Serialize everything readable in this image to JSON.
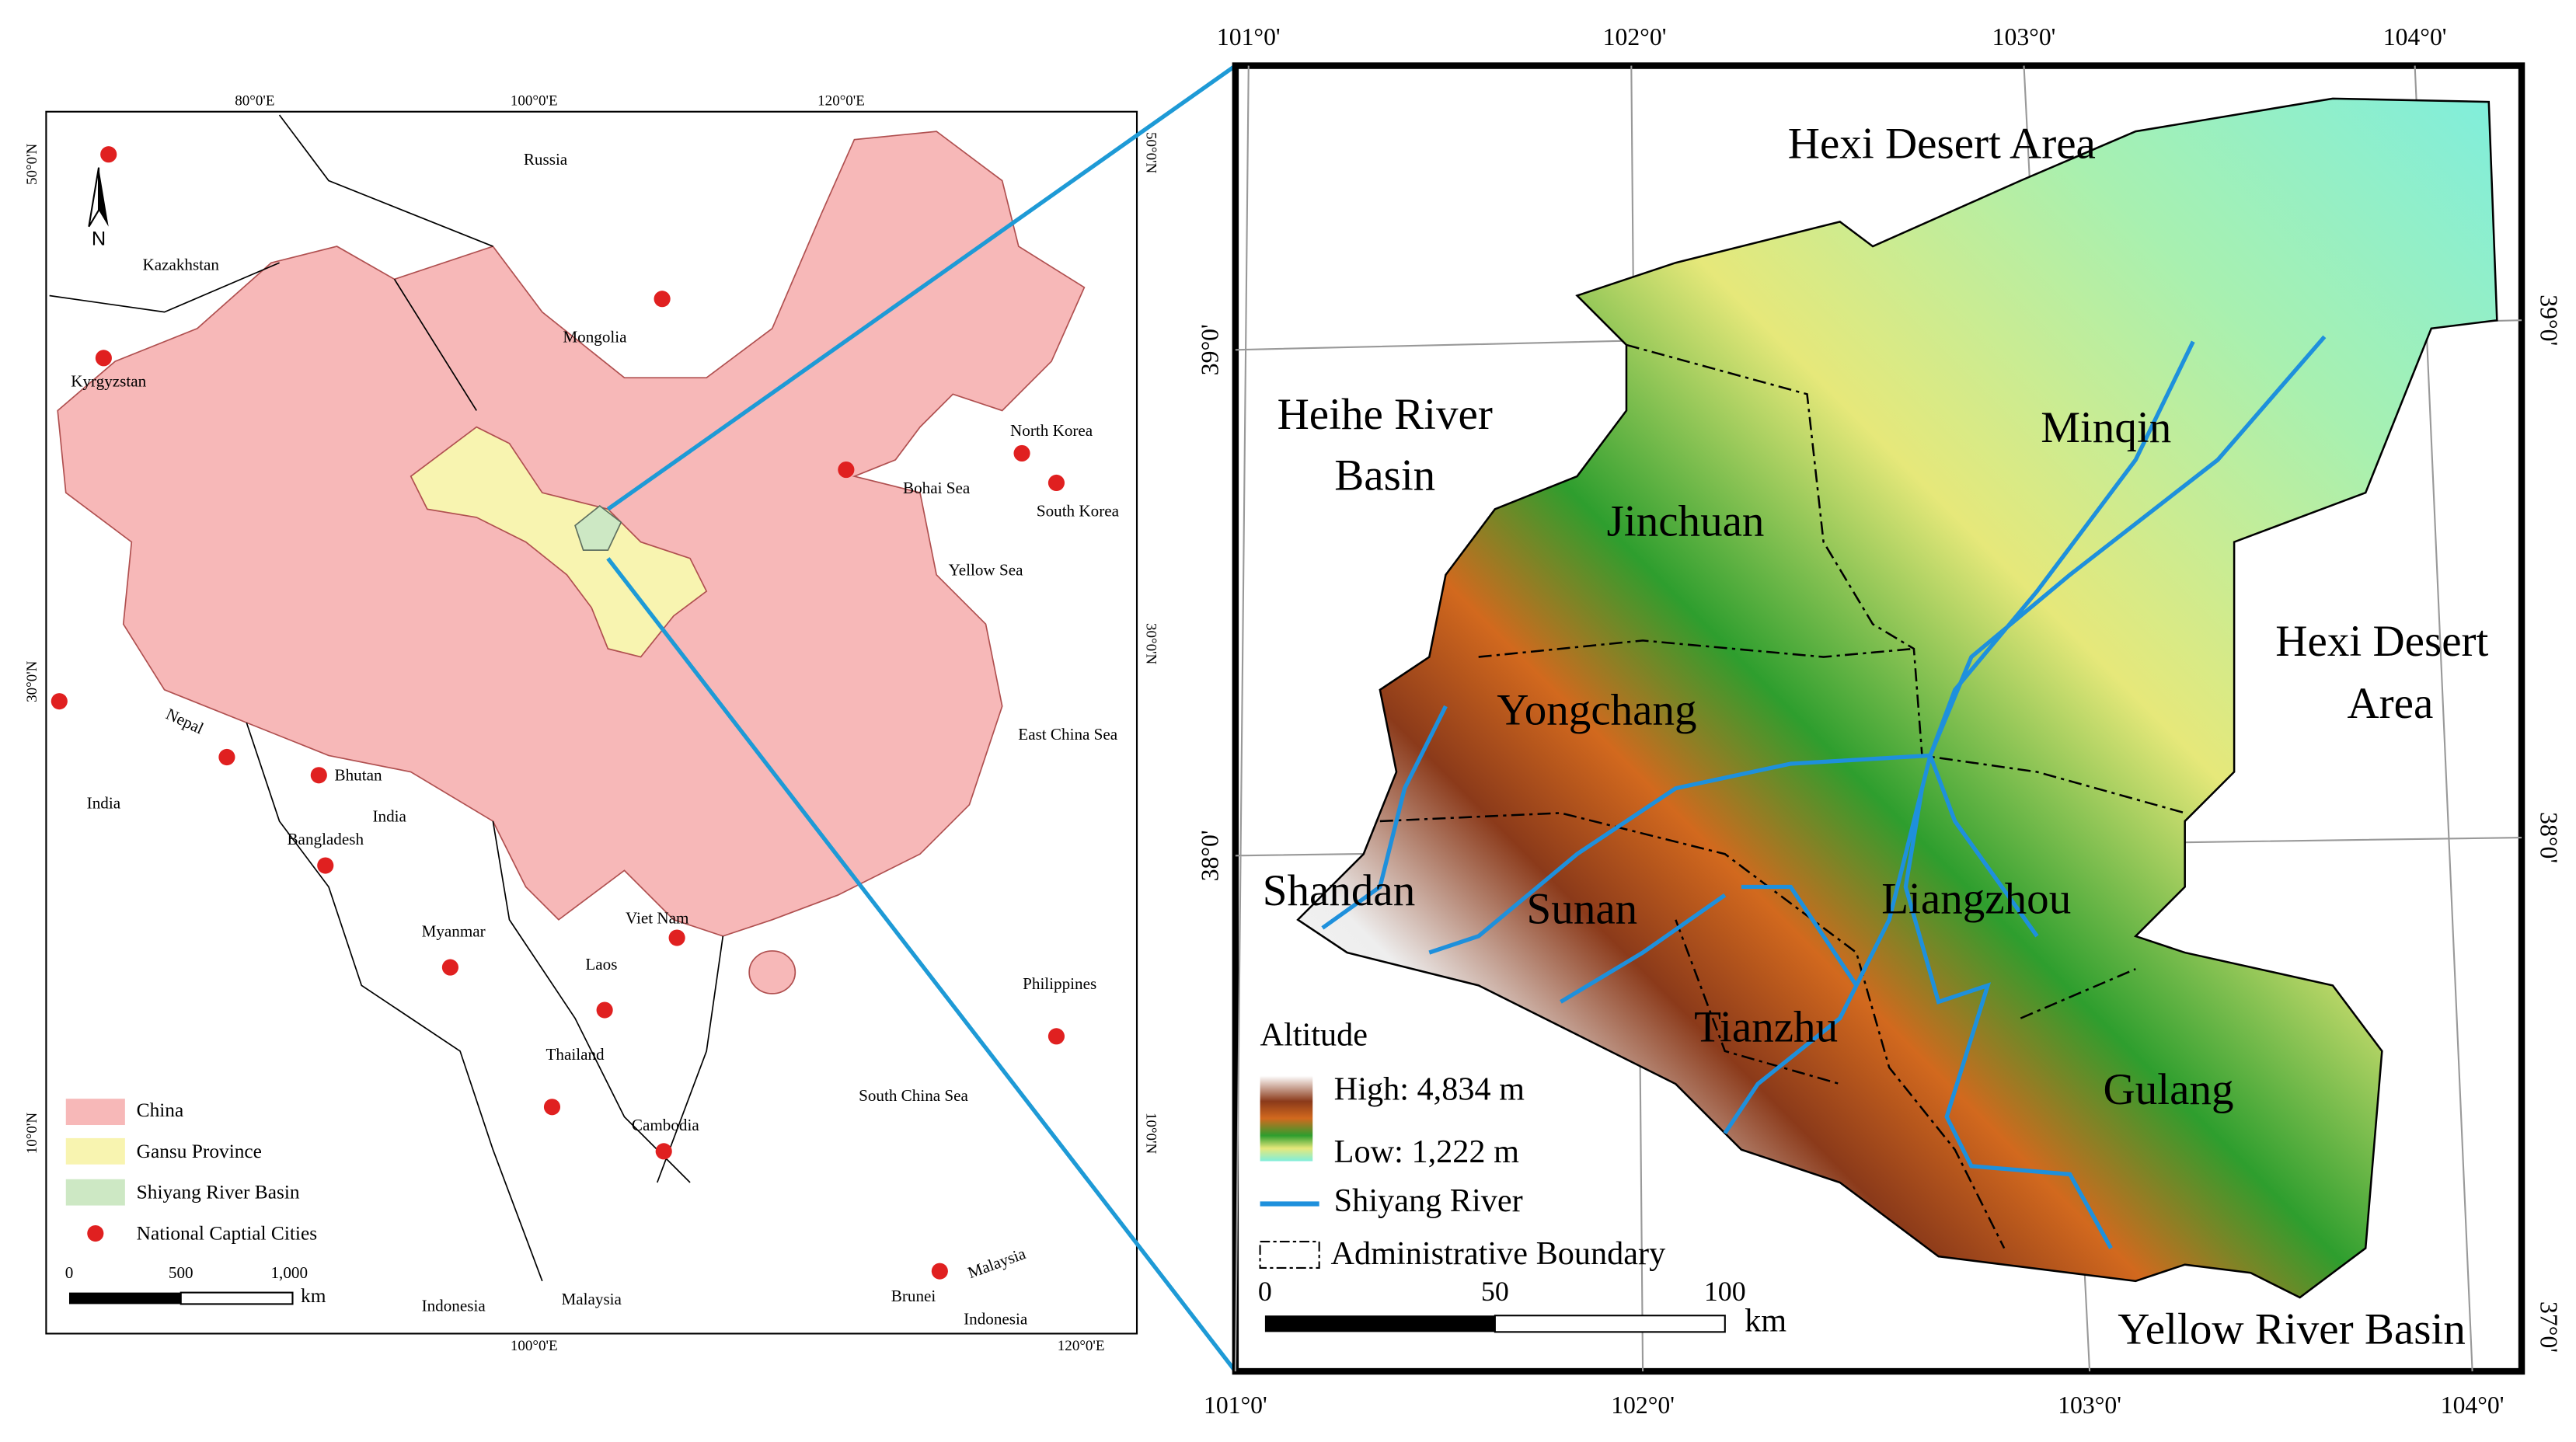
{
  "left_map": {
    "lon_top": [
      "80°0'E",
      "100°0'E",
      "120°0'E"
    ],
    "lon_bottom": [
      "100°0'E",
      "120°0'E"
    ],
    "lat_left": [
      "50°0'N",
      "30°0'N",
      "10°0'N"
    ],
    "lat_right": [
      "50°0'N",
      "30°0'N",
      "10°0'N"
    ],
    "north": "N",
    "places": [
      "Russia",
      "Kazakhstan",
      "Mongolia",
      "Kyrgyzstan",
      "North Korea",
      "Bohai Sea",
      "South Korea",
      "Yellow Sea",
      "Nepal",
      "Bhutan",
      "India",
      "India",
      "Bangladesh",
      "East China Sea",
      "Myanmar",
      "Viet Nam",
      "Laos",
      "Philippines",
      "Thailand",
      "Cambodia",
      "South China Sea",
      "Brunei",
      "Malaysia",
      "Malaysia",
      "Indonesia",
      "Indonesia"
    ],
    "legend": [
      "China",
      "Gansu Province",
      "Shiyang River Basin",
      "National Captial Cities"
    ],
    "scale_ticks": [
      "0",
      "500",
      "1,000"
    ],
    "scale_unit": "km"
  },
  "right_map": {
    "lon_top": [
      "101°0'",
      "102°0'",
      "103°0'",
      "104°0'"
    ],
    "lon_bottom": [
      "101°0'",
      "102°0'",
      "103°0'",
      "104°0'"
    ],
    "lat_left": [
      "39°0'",
      "38°0'"
    ],
    "lat_right": [
      "39°0'",
      "38°0'",
      "37°0'"
    ],
    "places": [
      "Hexi Desert Area",
      "Heihe River",
      "Basin",
      "Minqin",
      "Jinchuan",
      "Hexi Desert",
      "Area",
      "Yongchang",
      "Shandan",
      "Sunan",
      "Liangzhou",
      "Tianzhu",
      "Gulang",
      "Yellow River Basin"
    ],
    "legend": {
      "title": "Altitude",
      "high": "High: 4,834 m",
      "low": "Low: 1,222 m",
      "river": "Shiyang River",
      "boundary": "Administrative Boundary"
    },
    "scale_ticks": [
      "0",
      "50",
      "100"
    ],
    "scale_unit": "km"
  }
}
